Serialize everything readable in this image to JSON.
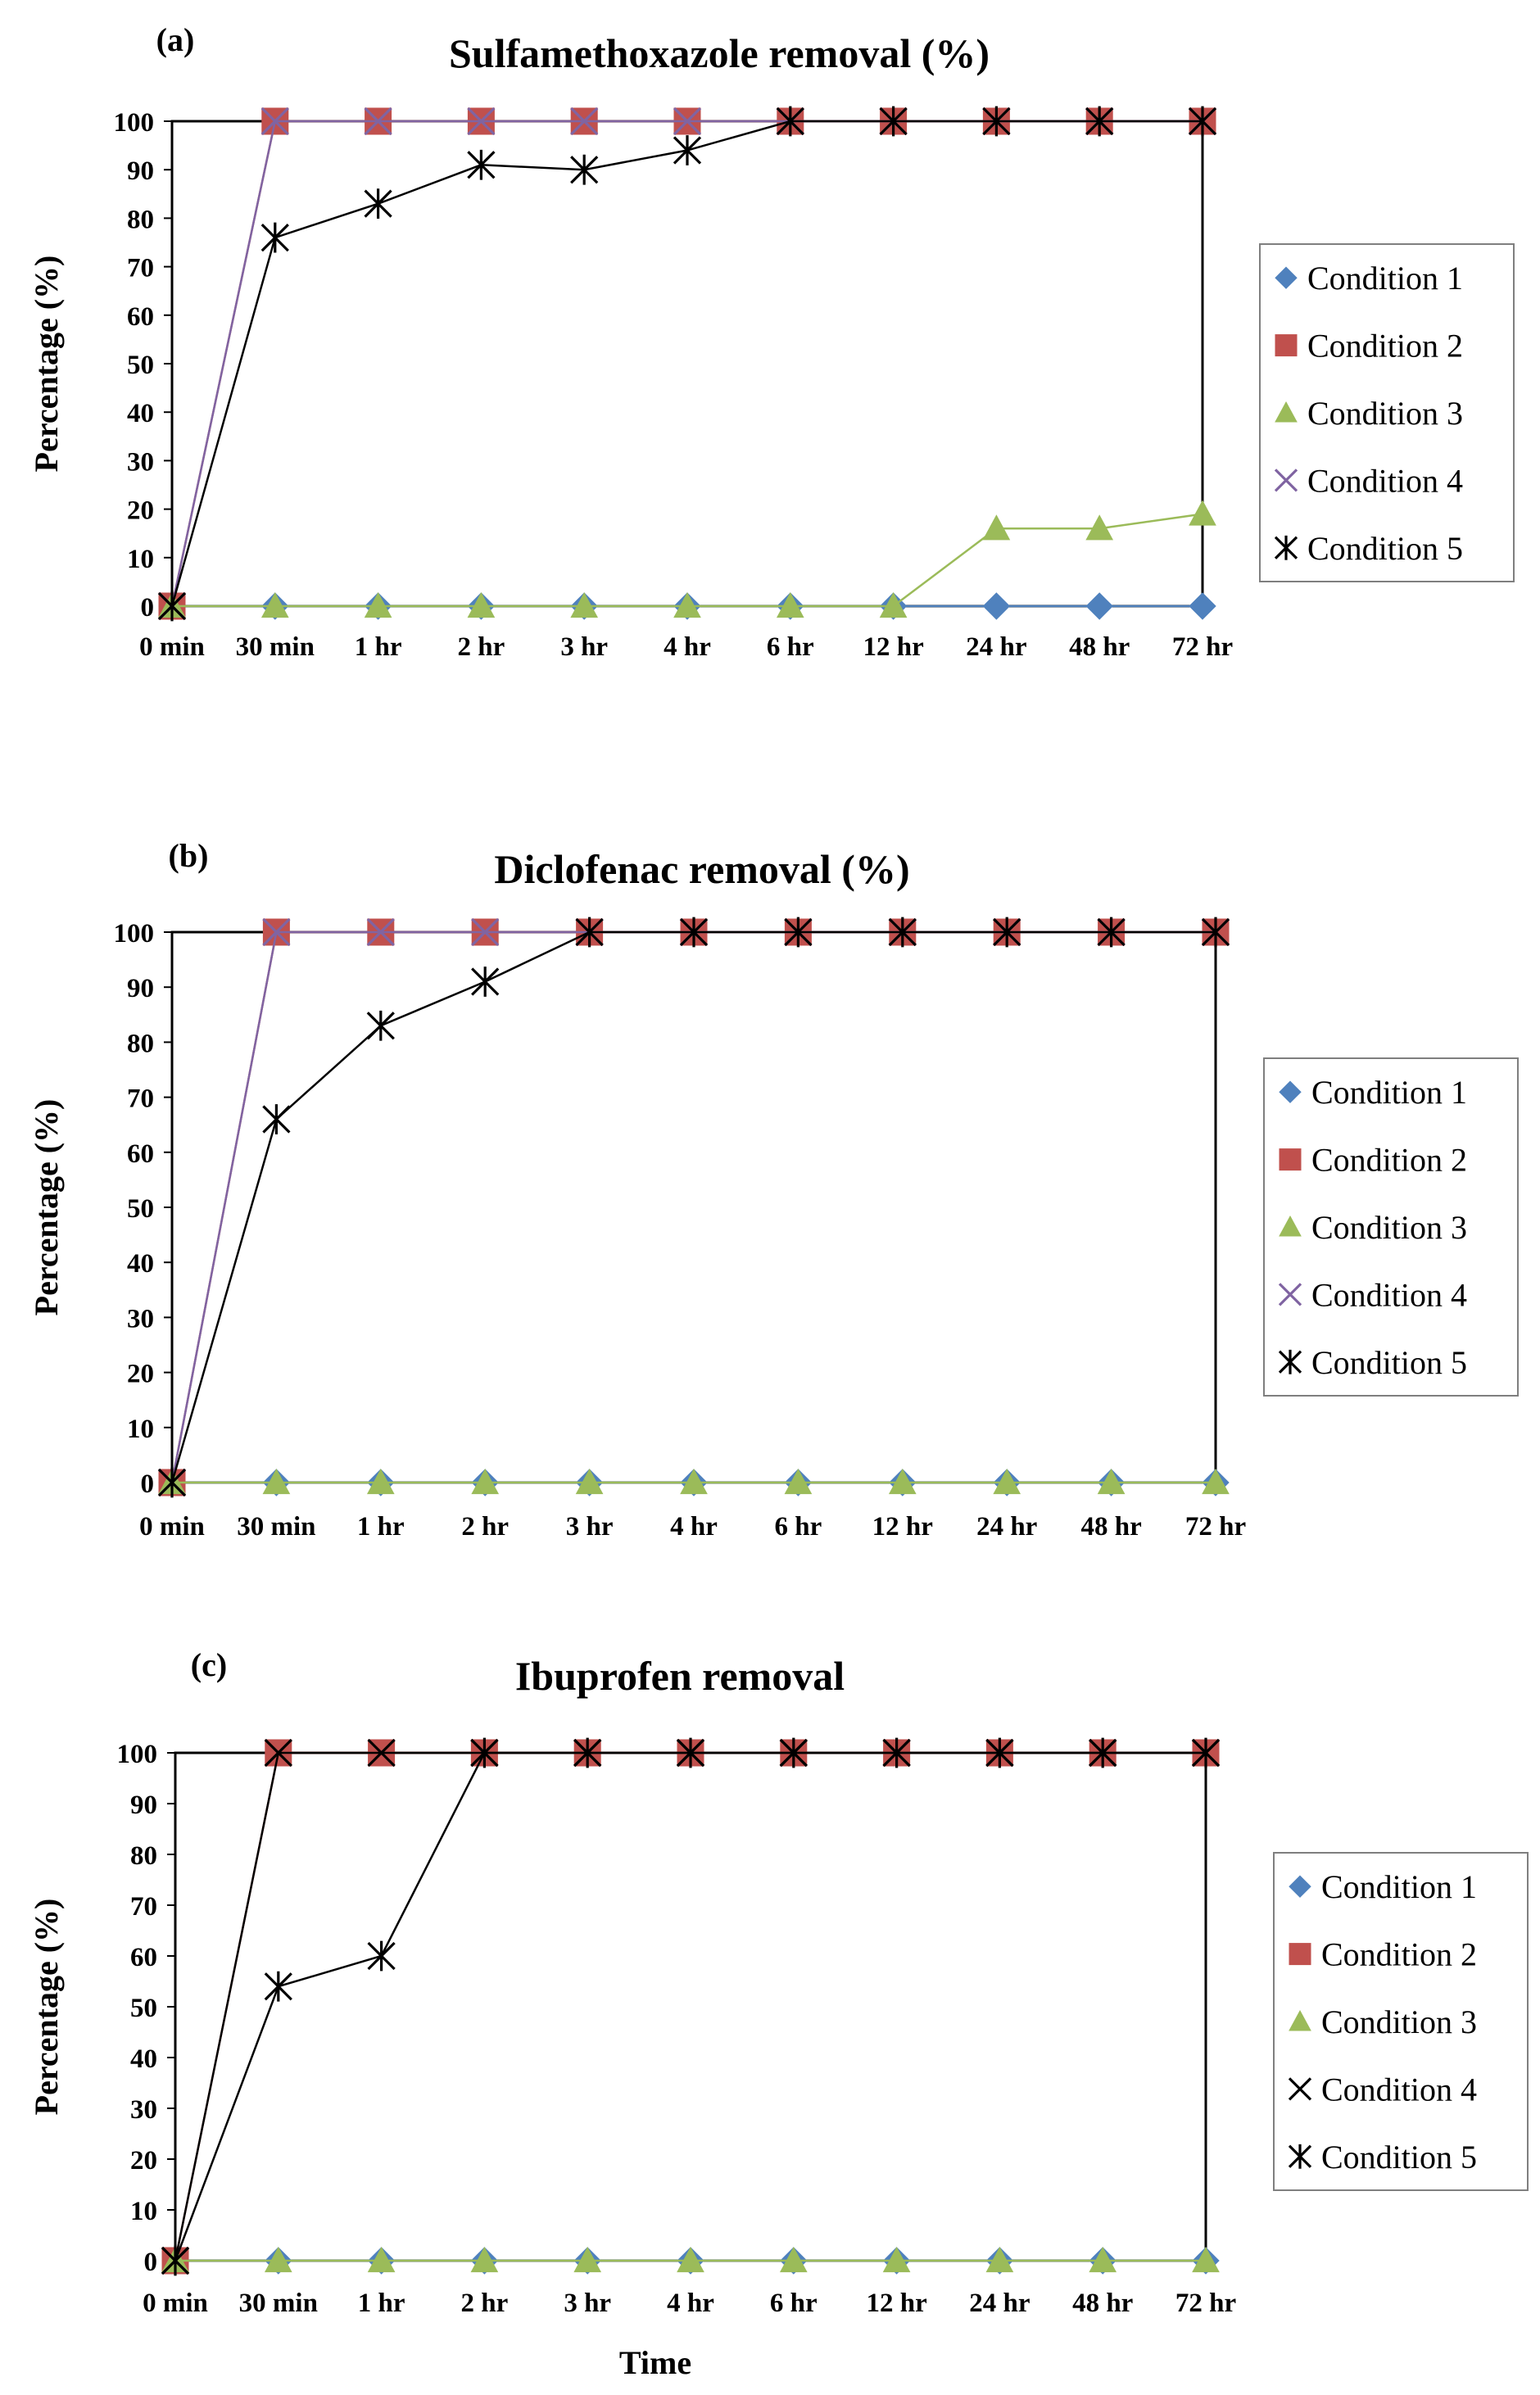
{
  "figure": {
    "xlabel": "Time"
  },
  "chart_data": [
    {
      "panel_label": "(a)",
      "type": "line",
      "title": "Sulfamethoxazole removal (%)",
      "ylabel": "Percentage (%)",
      "xlabel": "",
      "categories": [
        "0 min",
        "30 min",
        "1 hr",
        "2 hr",
        "3 hr",
        "4 hr",
        "6 hr",
        "12 hr",
        "24 hr",
        "48 hr",
        "72 hr"
      ],
      "ylim": [
        0,
        100
      ],
      "yticks": [
        0,
        10,
        20,
        30,
        40,
        50,
        60,
        70,
        80,
        90,
        100
      ],
      "grid": false,
      "legend_position": "right",
      "series": [
        {
          "name": "Condition 1",
          "marker": "diamond",
          "color": "#4f81bd",
          "values": [
            0,
            0,
            0,
            0,
            0,
            0,
            0,
            0,
            0,
            0,
            0
          ]
        },
        {
          "name": "Condition 2",
          "marker": "square",
          "color": "#c0504d",
          "values": [
            0,
            100,
            100,
            100,
            100,
            100,
            100,
            100,
            100,
            100,
            100
          ]
        },
        {
          "name": "Condition 3",
          "marker": "triangle",
          "color": "#9bbb59",
          "values": [
            0,
            0,
            0,
            0,
            0,
            0,
            0,
            0,
            16,
            16,
            19
          ]
        },
        {
          "name": "Condition 4",
          "marker": "x",
          "color": "#8064a2",
          "values": [
            0,
            100,
            100,
            100,
            100,
            100,
            100,
            100,
            100,
            100,
            100
          ]
        },
        {
          "name": "Condition 5",
          "marker": "star",
          "color": "#000000",
          "values": [
            0,
            76,
            83,
            91,
            90,
            94,
            100,
            100,
            100,
            100,
            100
          ]
        }
      ]
    },
    {
      "panel_label": "(b)",
      "type": "line",
      "title": "Diclofenac removal (%)",
      "ylabel": "Percentage (%)",
      "xlabel": "",
      "categories": [
        "0 min",
        "30 min",
        "1 hr",
        "2 hr",
        "3 hr",
        "4 hr",
        "6 hr",
        "12 hr",
        "24 hr",
        "48 hr",
        "72 hr"
      ],
      "ylim": [
        0,
        100
      ],
      "yticks": [
        0,
        10,
        20,
        30,
        40,
        50,
        60,
        70,
        80,
        90,
        100
      ],
      "grid": false,
      "legend_position": "right",
      "series": [
        {
          "name": "Condition 1",
          "marker": "diamond",
          "color": "#4f81bd",
          "values": [
            0,
            0,
            0,
            0,
            0,
            0,
            0,
            0,
            0,
            0,
            0
          ]
        },
        {
          "name": "Condition 2",
          "marker": "square",
          "color": "#c0504d",
          "values": [
            0,
            100,
            100,
            100,
            100,
            100,
            100,
            100,
            100,
            100,
            100
          ]
        },
        {
          "name": "Condition 3",
          "marker": "triangle",
          "color": "#9bbb59",
          "values": [
            0,
            0,
            0,
            0,
            0,
            0,
            0,
            0,
            0,
            0,
            0
          ]
        },
        {
          "name": "Condition 4",
          "marker": "x",
          "color": "#8064a2",
          "values": [
            0,
            100,
            100,
            100,
            100,
            100,
            100,
            100,
            100,
            100,
            100
          ]
        },
        {
          "name": "Condition 5",
          "marker": "star",
          "color": "#000000",
          "values": [
            0,
            66,
            83,
            91,
            100,
            100,
            100,
            100,
            100,
            100,
            100
          ]
        }
      ]
    },
    {
      "panel_label": "(c)",
      "type": "line",
      "title": "Ibuprofen removal",
      "ylabel": "Percentage (%)",
      "xlabel": "Time",
      "categories": [
        "0 min",
        "30 min",
        "1 hr",
        "2 hr",
        "3 hr",
        "4 hr",
        "6 hr",
        "12 hr",
        "24 hr",
        "48 hr",
        "72 hr"
      ],
      "ylim": [
        0,
        100
      ],
      "yticks": [
        0,
        10,
        20,
        30,
        40,
        50,
        60,
        70,
        80,
        90,
        100
      ],
      "grid": false,
      "legend_position": "right",
      "series": [
        {
          "name": "Condition 1",
          "marker": "diamond",
          "color": "#4f81bd",
          "values": [
            0,
            0,
            0,
            0,
            0,
            0,
            0,
            0,
            0,
            0,
            0
          ]
        },
        {
          "name": "Condition 2",
          "marker": "square",
          "color": "#c0504d",
          "values": [
            0,
            100,
            100,
            100,
            100,
            100,
            100,
            100,
            100,
            100,
            100
          ]
        },
        {
          "name": "Condition 3",
          "marker": "triangle",
          "color": "#9bbb59",
          "values": [
            0,
            0,
            0,
            0,
            0,
            0,
            0,
            0,
            0,
            0,
            0
          ]
        },
        {
          "name": "Condition 4",
          "marker": "x",
          "color": "#000000",
          "values": [
            0,
            100,
            100,
            100,
            100,
            100,
            100,
            100,
            100,
            100,
            100
          ]
        },
        {
          "name": "Condition 5",
          "marker": "star",
          "color": "#000000",
          "values": [
            0,
            54,
            60,
            100,
            100,
            100,
            100,
            100,
            100,
            100,
            100
          ]
        }
      ]
    }
  ]
}
